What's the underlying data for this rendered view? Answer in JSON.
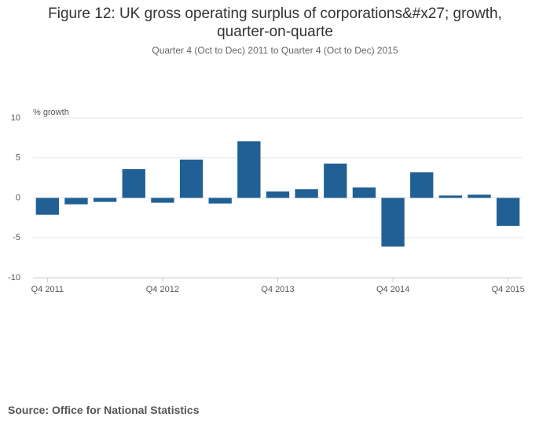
{
  "chart_data": {
    "type": "bar",
    "title": "Figure 12: UK gross operating surplus of corporations&#x27; growth, quarter-on-quarte",
    "subtitle": "Quarter 4 (Oct to Dec) 2011 to Quarter 4 (Oct to Dec) 2015",
    "y_label": "% growth",
    "source": "Source: Office for National Statistics",
    "categories": [
      "Q4 2011",
      null,
      null,
      null,
      "Q4 2012",
      null,
      null,
      null,
      "Q4 2013",
      null,
      null,
      null,
      "Q4 2014",
      null,
      null,
      null,
      "Q4 2015"
    ],
    "values": [
      -2.1,
      -0.8,
      -0.5,
      3.6,
      -0.6,
      4.8,
      -0.7,
      7.1,
      0.8,
      1.1,
      4.3,
      1.3,
      -6.1,
      3.2,
      0.3,
      0.4,
      -3.5
    ],
    "color": "#206095",
    "ylim": [
      -10,
      10
    ],
    "yticks": [
      -10,
      -5,
      0,
      5,
      10
    ],
    "grid": true
  }
}
